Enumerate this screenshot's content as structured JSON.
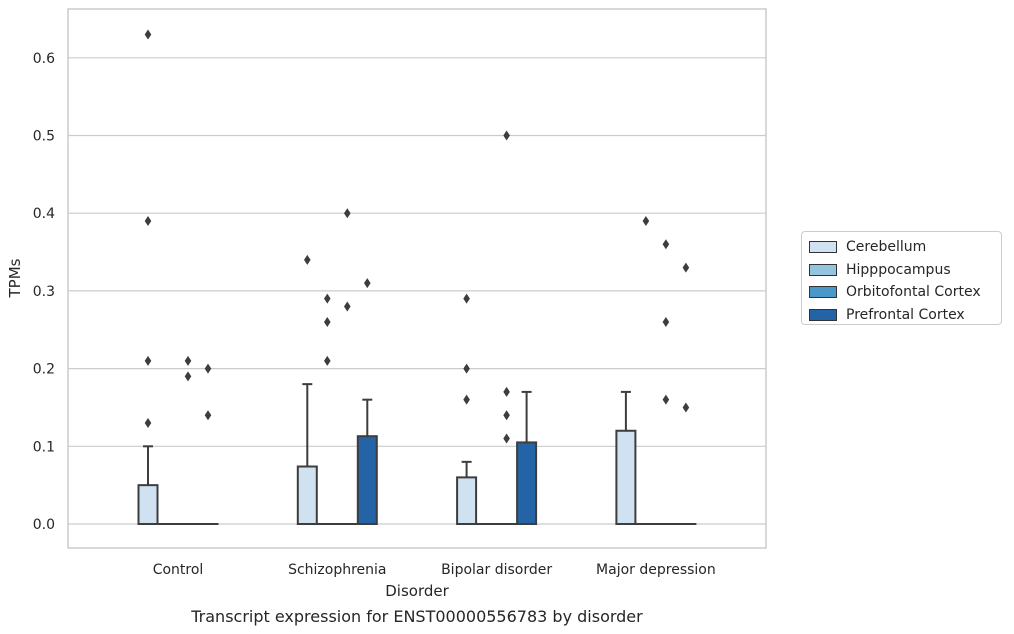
{
  "chart_data": {
    "type": "box",
    "title": "Transcript expression for ENST00000556783 by disorder",
    "xlabel": "Disorder",
    "ylabel": "TPMs",
    "categories": [
      "Control",
      "Schizophrenia",
      "Bipolar disorder",
      "Major depression"
    ],
    "ylim": [
      -0.03,
      0.66
    ],
    "yticks": [
      "0.0",
      "0.1",
      "0.2",
      "0.3",
      "0.4",
      "0.5",
      "0.6"
    ],
    "grid": true,
    "legend_position": "right",
    "series": [
      {
        "name": "Cerebellum",
        "color": "#d0e1f2",
        "boxes": [
          {
            "q1": 0,
            "median": 0,
            "q3": 0.05,
            "whisker_low": 0,
            "whisker_high": 0.1,
            "outliers": [
              0.39,
              0.21,
              0.13,
              0.63
            ]
          },
          {
            "q1": 0,
            "median": 0,
            "q3": 0.074,
            "whisker_low": 0,
            "whisker_high": 0.18,
            "outliers": [
              0.34
            ]
          },
          {
            "q1": 0,
            "median": 0,
            "q3": 0.06,
            "whisker_low": 0,
            "whisker_high": 0.08,
            "outliers": [
              0.29,
              0.2,
              0.16
            ]
          },
          {
            "q1": 0,
            "median": 0,
            "q3": 0.12,
            "whisker_low": 0,
            "whisker_high": 0.17,
            "outliers": []
          }
        ]
      },
      {
        "name": "Hipppocampus",
        "color": "#94c4df",
        "boxes": [
          {
            "q1": 0,
            "median": 0,
            "q3": 0,
            "whisker_low": 0,
            "whisker_high": 0,
            "outliers": []
          },
          {
            "q1": 0,
            "median": 0,
            "q3": 0,
            "whisker_low": 0,
            "whisker_high": 0,
            "outliers": [
              0.29,
              0.26,
              0.21
            ]
          },
          {
            "q1": 0,
            "median": 0,
            "q3": 0,
            "whisker_low": 0,
            "whisker_high": 0,
            "outliers": []
          },
          {
            "q1": 0,
            "median": 0,
            "q3": 0,
            "whisker_low": 0,
            "whisker_high": 0,
            "outliers": [
              0.39
            ]
          }
        ]
      },
      {
        "name": "Orbitofontal Cortex",
        "color": "#4a98c9",
        "boxes": [
          {
            "q1": 0,
            "median": 0,
            "q3": 0,
            "whisker_low": 0,
            "whisker_high": 0,
            "outliers": [
              0.21,
              0.19
            ]
          },
          {
            "q1": 0,
            "median": 0,
            "q3": 0,
            "whisker_low": 0,
            "whisker_high": 0,
            "outliers": [
              0.4,
              0.28
            ]
          },
          {
            "q1": 0,
            "median": 0,
            "q3": 0,
            "whisker_low": 0,
            "whisker_high": 0,
            "outliers": [
              0.5,
              0.17,
              0.14,
              0.11
            ]
          },
          {
            "q1": 0,
            "median": 0,
            "q3": 0,
            "whisker_low": 0,
            "whisker_high": 0,
            "outliers": [
              0.26,
              0.36,
              0.16
            ]
          }
        ]
      },
      {
        "name": "Prefrontal Cortex",
        "color": "#2464a6",
        "boxes": [
          {
            "q1": 0,
            "median": 0,
            "q3": 0,
            "whisker_low": 0,
            "whisker_high": 0,
            "outliers": [
              0.2,
              0.14
            ]
          },
          {
            "q1": 0,
            "median": 0,
            "q3": 0.113,
            "whisker_low": 0,
            "whisker_high": 0.16,
            "outliers": [
              0.31
            ]
          },
          {
            "q1": 0,
            "median": 0,
            "q3": 0.105,
            "whisker_low": 0,
            "whisker_high": 0.17,
            "outliers": []
          },
          {
            "q1": 0,
            "median": 0,
            "q3": 0,
            "whisker_low": 0,
            "whisker_high": 0,
            "outliers": [
              0.33,
              0.15
            ]
          }
        ]
      }
    ]
  }
}
